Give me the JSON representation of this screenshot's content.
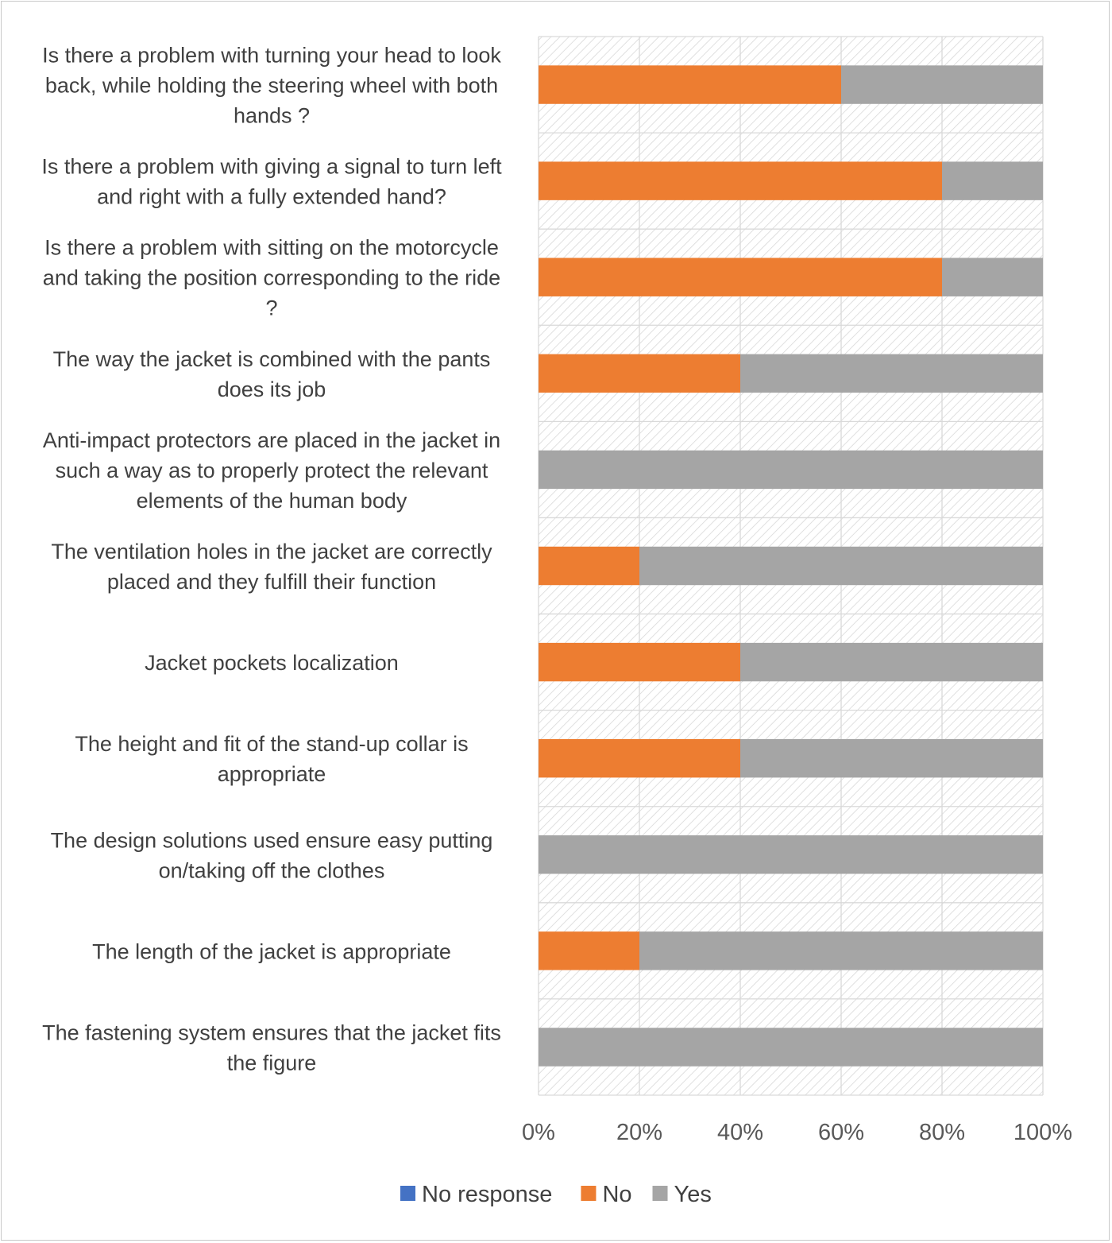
{
  "chart_data": {
    "type": "bar",
    "orientation": "horizontal",
    "stacked": "percent",
    "title": "",
    "xlabel": "",
    "ylabel": "",
    "xlim": [
      0,
      100
    ],
    "x_ticks": [
      "0%",
      "20%",
      "40%",
      "60%",
      "80%",
      "100%"
    ],
    "categories": [
      [
        "Is there a problem with turning your head to look",
        "back, while holding the steering wheel with both",
        "hands ?"
      ],
      [
        "Is there a problem with giving a signal to turn left",
        "and right with a fully extended hand?"
      ],
      [
        "Is there a problem with sitting on the motorcycle",
        "and taking the position corresponding to the ride",
        "?"
      ],
      [
        "The way the jacket is combined with the pants",
        "does its job"
      ],
      [
        "Anti-impact protectors are placed in the jacket in",
        "such a way as to properly protect the relevant",
        "elements of the human body"
      ],
      [
        "The ventilation holes in the jacket are correctly",
        "placed and they fulfill their function"
      ],
      [
        "Jacket pockets localization"
      ],
      [
        "The height and fit of the stand-up collar is",
        "appropriate"
      ],
      [
        "The design solutions used ensure easy putting",
        "on/taking off the clothes"
      ],
      [
        "The length of the jacket is appropriate"
      ],
      [
        "The fastening system ensures that the jacket fits",
        "the figure"
      ]
    ],
    "series": [
      {
        "name": "No response",
        "color": "#4472c4",
        "values": [
          0,
          0,
          0,
          0,
          0,
          0,
          0,
          0,
          0,
          0,
          0
        ]
      },
      {
        "name": "No",
        "color": "#ed7d31",
        "values": [
          60,
          80,
          80,
          40,
          0,
          20,
          40,
          40,
          0,
          20,
          0
        ]
      },
      {
        "name": "Yes",
        "color": "#a5a5a5",
        "values": [
          40,
          20,
          20,
          60,
          100,
          80,
          60,
          60,
          100,
          80,
          100
        ]
      }
    ],
    "legend_position": "bottom",
    "grid": true
  }
}
